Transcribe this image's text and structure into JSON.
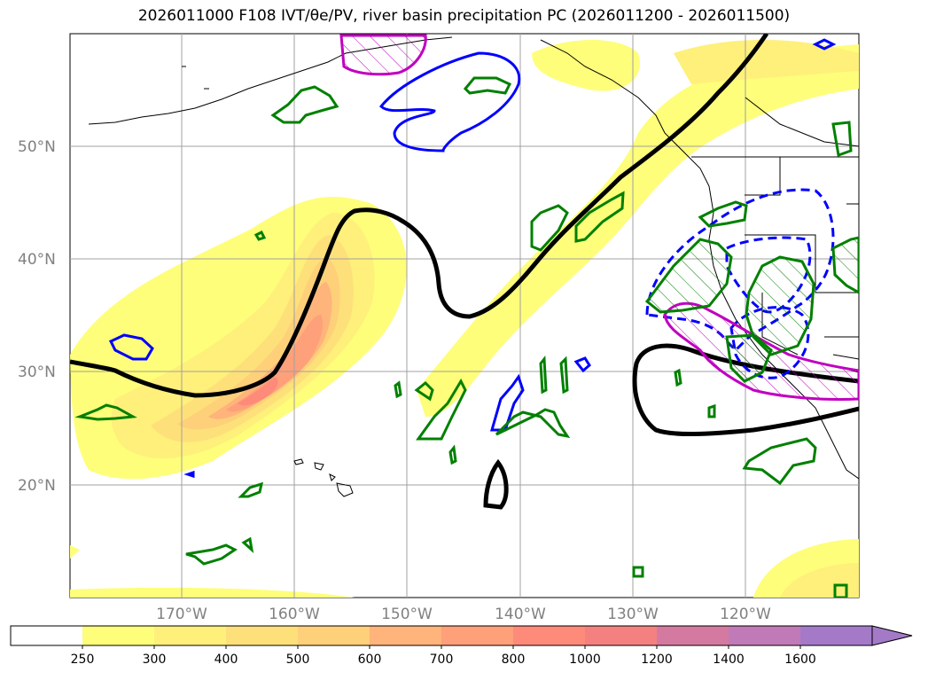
{
  "title": "2026011000 F108 IVT/θe/PV, river basin precipitation PC (2026011200 - 2026011500)",
  "map": {
    "lat_ticks": [
      "50°N",
      "40°N",
      "30°N",
      "20°N"
    ],
    "lon_ticks": [
      "170°W",
      "160°W",
      "150°W",
      "140°W",
      "130°W",
      "120°W"
    ]
  },
  "colorbar": {
    "levels": [
      "250",
      "300",
      "400",
      "500",
      "600",
      "700",
      "800",
      "1000",
      "1200",
      "1400",
      "1600"
    ],
    "colors": [
      "#ffffff",
      "#fefe7a",
      "#fef07a",
      "#fee07a",
      "#fed07a",
      "#feb47a",
      "#fea07a",
      "#fe8a7a",
      "#f48080",
      "#d47aa0",
      "#c07ab8",
      "#a47ac8"
    ],
    "extend": "max"
  },
  "colors": {
    "theta_e_contour": "#000000",
    "pv_positive": "#0000ff",
    "precip_pc": "#008000",
    "pv_highlight": "#c000c0",
    "grid": "#a0a0a0",
    "coast": "#000000"
  }
}
